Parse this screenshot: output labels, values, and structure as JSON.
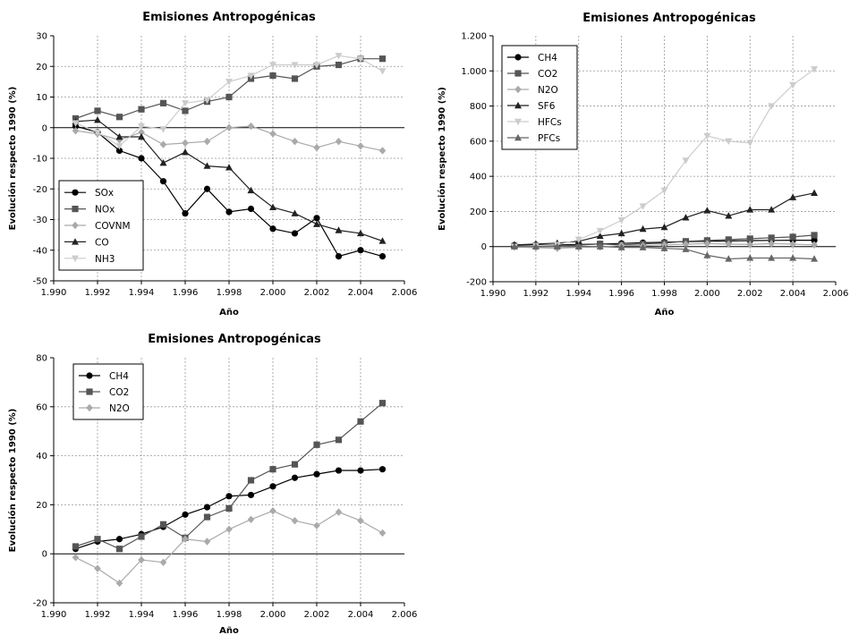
{
  "chart_data": [
    {
      "type": "line",
      "title": "Emisiones Antropogénicas",
      "xlabel": "Año",
      "ylabel": "Evolución respecto 1990 (%)",
      "xlim": [
        1990,
        2006
      ],
      "ylim": [
        -50,
        30
      ],
      "x_ticks": [
        1990,
        1992,
        1994,
        1996,
        1998,
        2000,
        2002,
        2004,
        2006
      ],
      "x_tick_labels": [
        "1.990",
        "1.992",
        "1.994",
        "1.996",
        "1.998",
        "2.000",
        "2.002",
        "2.004",
        "2.006"
      ],
      "y_ticks": [
        -50,
        -40,
        -30,
        -20,
        -10,
        0,
        10,
        20,
        30
      ],
      "y_tick_labels": [
        "-50",
        "-40",
        "-30",
        "-20",
        "-10",
        "0",
        "10",
        "20",
        "30"
      ],
      "grid": true,
      "zero_line": true,
      "legend_position": "bottom-left",
      "x": [
        1991,
        1992,
        1993,
        1994,
        1995,
        1996,
        1997,
        1998,
        1999,
        2000,
        2001,
        2002,
        2003,
        2004,
        2005
      ],
      "series": [
        {
          "name": "SOx",
          "color": "#000000",
          "marker": "circle",
          "values": [
            0.5,
            -1.5,
            -7.5,
            -10,
            -17.5,
            -28,
            -20,
            -27.5,
            -26.5,
            -33,
            -34.5,
            -29.5,
            -42,
            -40,
            -42
          ]
        },
        {
          "name": "NOx",
          "color": "#555555",
          "marker": "square",
          "values": [
            3,
            5.5,
            3.5,
            6,
            8,
            5.5,
            8.5,
            10,
            16,
            17,
            16,
            20,
            20.5,
            22.5,
            22.5
          ]
        },
        {
          "name": "COVNM",
          "color": "#aaaaaa",
          "marker": "diamond",
          "values": [
            -1,
            -2,
            -4,
            -1.5,
            -5.5,
            -5,
            -4.5,
            0,
            0.5,
            -2,
            -4.5,
            -6.5,
            -4.5,
            -6,
            -7.5
          ]
        },
        {
          "name": "CO",
          "color": "#222222",
          "marker": "triangle-up",
          "values": [
            2,
            2.5,
            -3,
            -3,
            -11.5,
            -8,
            -12.5,
            -13,
            -20.5,
            -26,
            -28,
            -31.5,
            -33.5,
            -34.5,
            -37
          ]
        },
        {
          "name": "NH3",
          "color": "#cccccc",
          "marker": "triangle-down",
          "values": [
            1.5,
            -1.5,
            -6,
            0.5,
            -0.5,
            8,
            9,
            15,
            17,
            20.5,
            20.5,
            20.5,
            23.5,
            22.5,
            18.5
          ]
        }
      ]
    },
    {
      "type": "line",
      "title": "Emisiones Antropogénicas",
      "xlabel": "Año",
      "ylabel": "Evolución respecto 1990 (%)",
      "xlim": [
        1990,
        2006
      ],
      "ylim": [
        -200,
        1200
      ],
      "x_ticks": [
        1990,
        1992,
        1994,
        1996,
        1998,
        2000,
        2002,
        2004,
        2006
      ],
      "x_tick_labels": [
        "1.990",
        "1.992",
        "1.994",
        "1.996",
        "1.998",
        "2.000",
        "2.002",
        "2.004",
        "2.006"
      ],
      "y_ticks": [
        -200,
        0,
        200,
        400,
        600,
        800,
        1000,
        1200
      ],
      "y_tick_labels": [
        "-200",
        "0",
        "200",
        "400",
        "600",
        "800",
        "1.000",
        "1.200"
      ],
      "grid": true,
      "zero_line": true,
      "legend_position": "top-left",
      "x": [
        1991,
        1992,
        1993,
        1994,
        1995,
        1996,
        1997,
        1998,
        1999,
        2000,
        2001,
        2002,
        2003,
        2004,
        2005
      ],
      "series": [
        {
          "name": "CH4",
          "color": "#000000",
          "marker": "circle",
          "values": [
            8,
            10,
            10,
            12,
            15,
            18,
            22,
            25,
            28,
            30,
            32,
            34,
            35,
            36,
            36
          ]
        },
        {
          "name": "CO2",
          "color": "#555555",
          "marker": "square",
          "values": [
            3,
            5,
            3,
            8,
            15,
            10,
            15,
            20,
            30,
            35,
            40,
            45,
            50,
            55,
            65
          ]
        },
        {
          "name": "N2O",
          "color": "#aaaaaa",
          "marker": "diamond",
          "values": [
            -3,
            -6,
            -10,
            -4,
            -3,
            7,
            5,
            10,
            14,
            17,
            14,
            12,
            17,
            14,
            10
          ]
        },
        {
          "name": "SF6",
          "color": "#222222",
          "marker": "triangle-up",
          "values": [
            10,
            15,
            20,
            30,
            60,
            75,
            100,
            110,
            165,
            205,
            175,
            210,
            210,
            280,
            305
          ]
        },
        {
          "name": "HFCs",
          "color": "#cccccc",
          "marker": "triangle-down",
          "values": [
            0,
            5,
            10,
            40,
            90,
            150,
            230,
            320,
            490,
            630,
            600,
            590,
            800,
            920,
            1010
          ]
        },
        {
          "name": "PFCs",
          "color": "#666666",
          "marker": "triangle-up",
          "values": [
            0,
            0,
            0,
            0,
            0,
            -5,
            -5,
            -10,
            -15,
            -50,
            -70,
            -65,
            -65,
            -65,
            -70
          ]
        }
      ]
    },
    {
      "type": "line",
      "title": "Emisiones Antropogénicas",
      "xlabel": "Año",
      "ylabel": "Evolución respecto 1990 (%)",
      "xlim": [
        1990,
        2006
      ],
      "ylim": [
        -20,
        80
      ],
      "x_ticks": [
        1990,
        1992,
        1994,
        1996,
        1998,
        2000,
        2002,
        2004,
        2006
      ],
      "x_tick_labels": [
        "1.990",
        "1.992",
        "1.994",
        "1.996",
        "1.998",
        "2.000",
        "2.002",
        "2.004",
        "2.006"
      ],
      "y_ticks": [
        -20,
        0,
        20,
        40,
        60,
        80
      ],
      "y_tick_labels": [
        "-20",
        "0",
        "20",
        "40",
        "60",
        "80"
      ],
      "grid": true,
      "zero_line": true,
      "legend_position": "top-left",
      "x": [
        1991,
        1992,
        1993,
        1994,
        1995,
        1996,
        1997,
        1998,
        1999,
        2000,
        2001,
        2002,
        2003,
        2004,
        2005
      ],
      "series": [
        {
          "name": "CH4",
          "color": "#000000",
          "marker": "circle",
          "values": [
            2,
            5,
            6,
            8,
            11,
            16,
            19,
            23.5,
            24,
            27.5,
            31,
            32.5,
            34,
            34,
            34.5
          ]
        },
        {
          "name": "CO2",
          "color": "#555555",
          "marker": "square",
          "values": [
            3,
            6,
            2,
            7,
            12,
            6.5,
            15,
            18.5,
            30,
            34.5,
            36.5,
            44.5,
            46.5,
            54,
            61.5
          ]
        },
        {
          "name": "N2O",
          "color": "#aaaaaa",
          "marker": "diamond",
          "values": [
            -1.5,
            -6,
            -12,
            -2.5,
            -3.5,
            6,
            5,
            10,
            14,
            17.5,
            13.5,
            11.5,
            17,
            13.5,
            8.5
          ]
        }
      ]
    }
  ]
}
